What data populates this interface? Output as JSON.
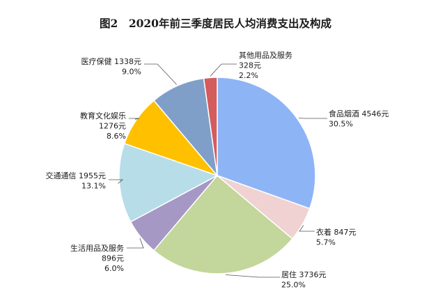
{
  "chart_data": {
    "type": "pie",
    "title": "图2　2020年前三季度居民人均消费支出及构成",
    "slices": [
      {
        "name": "食品烟酒",
        "value": 4546,
        "value_label": "4546元",
        "percent": 30.5,
        "percent_label": "30.5%",
        "color": "#8db4f5"
      },
      {
        "name": "衣着",
        "value": 847,
        "value_label": "847元",
        "percent": 5.7,
        "percent_label": "5.7%",
        "color": "#f0d2d2"
      },
      {
        "name": "居住",
        "value": 3736,
        "value_label": "3736元",
        "percent": 25.0,
        "percent_label": "25.0%",
        "color": "#c3d69b"
      },
      {
        "name": "生活用品及服务",
        "value": 896,
        "value_label": "896元",
        "percent": 6.0,
        "percent_label": "6.0%",
        "color": "#a698c4"
      },
      {
        "name": "交通通信",
        "value": 1955,
        "value_label": "1955元",
        "percent": 13.1,
        "percent_label": "13.1%",
        "color": "#b7dde8"
      },
      {
        "name": "教育文化娱乐",
        "value": 1276,
        "value_label": "1276元",
        "percent": 8.6,
        "percent_label": "8.6%",
        "color": "#ffc000"
      },
      {
        "name": "医疗保健",
        "value": 1338,
        "value_label": "1338元",
        "percent": 9.0,
        "percent_label": "9.0%",
        "color": "#7f9fc9"
      },
      {
        "name": "其他用品及服务",
        "value": 328,
        "value_label": "328元",
        "percent": 2.2,
        "percent_label": "2.2%",
        "color": "#d35c5c"
      }
    ],
    "start_angle": "12 o'clock",
    "direction": "clockwise",
    "legend": "none"
  }
}
